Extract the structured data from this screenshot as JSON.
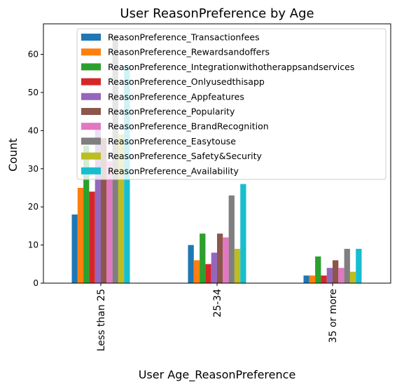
{
  "chart_data": {
    "type": "bar",
    "title": "User ReasonPreference by Age",
    "xlabel": "User Age_ReasonPreference",
    "ylabel": "Count",
    "categories": [
      "Less than 25",
      "25-34",
      "35 or more"
    ],
    "ylim": [
      0,
      68
    ],
    "yticks": [
      0,
      10,
      20,
      30,
      40,
      50,
      60
    ],
    "legend_position": "top-right",
    "grid": false,
    "series": [
      {
        "name": "ReasonPreference_Transactionfees",
        "color": "#1f77b4",
        "values": [
          18,
          10,
          2
        ]
      },
      {
        "name": "ReasonPreference_Rewardsandoffers",
        "color": "#ff7f0e",
        "values": [
          25,
          6,
          2
        ]
      },
      {
        "name": "ReasonPreference_Integrationwithotherappsandservices",
        "color": "#2ca02c",
        "values": [
          36,
          13,
          7
        ]
      },
      {
        "name": "ReasonPreference_Onlyusedthisapp",
        "color": "#d62728",
        "values": [
          24,
          5,
          2
        ]
      },
      {
        "name": "ReasonPreference_Appfeatures",
        "color": "#9467bd",
        "values": [
          41,
          8,
          4
        ]
      },
      {
        "name": "ReasonPreference_Popularity",
        "color": "#8c564b",
        "values": [
          38,
          13,
          6
        ]
      },
      {
        "name": "ReasonPreference_BrandRecognition",
        "color": "#e377c2",
        "values": [
          32,
          12,
          4
        ]
      },
      {
        "name": "ReasonPreference_Easytouse",
        "color": "#7f7f7f",
        "values": [
          65,
          23,
          9
        ]
      },
      {
        "name": "ReasonPreference_Safety&Security",
        "color": "#bcbd22",
        "values": [
          39,
          9,
          3
        ]
      },
      {
        "name": "ReasonPreference_Availability",
        "color": "#17becf",
        "values": [
          57,
          26,
          9
        ]
      }
    ]
  }
}
